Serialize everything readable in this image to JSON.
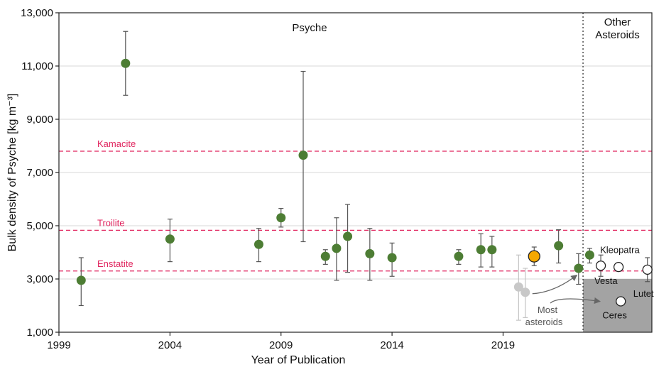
{
  "chart_data": {
    "type": "scatter",
    "title": "",
    "xlabel": "Year of Publication",
    "ylabel": "Bulk density of Psyche [kg m⁻³]",
    "xlim": [
      1999,
      2025.7
    ],
    "ylim": [
      1000,
      13000
    ],
    "x_ticks": [
      "1999",
      "2004",
      "2009",
      "2014",
      "2019"
    ],
    "x_tick_values": [
      1999,
      2004,
      2009,
      2014,
      2019
    ],
    "y_ticks": [
      "1,000",
      "3,000",
      "5,000",
      "7,000",
      "9,000",
      "11,000",
      "13,000"
    ],
    "y_tick_values": [
      1000,
      3000,
      5000,
      7000,
      9000,
      11000,
      13000
    ],
    "grid": "horizontal",
    "panels": {
      "psyche": "Psyche",
      "other_line1": "Other",
      "other_line2": "Asteroids",
      "divider_x": 2022.6
    },
    "reference_lines": [
      {
        "label": "Kamacite",
        "y": 7800,
        "color": "#e0245e"
      },
      {
        "label": "Troilite",
        "y": 4830,
        "color": "#e0245e"
      },
      {
        "label": "Enstatite",
        "y": 3300,
        "color": "#e0245e"
      }
    ],
    "psyche_points": [
      {
        "x": 2000.0,
        "y": 2950,
        "lo": 2000,
        "hi": 3800
      },
      {
        "x": 2002.0,
        "y": 11100,
        "lo": 9900,
        "hi": 12300
      },
      {
        "x": 2004.0,
        "y": 4500,
        "lo": 3650,
        "hi": 5250
      },
      {
        "x": 2008.0,
        "y": 4300,
        "lo": 3650,
        "hi": 4900
      },
      {
        "x": 2009.0,
        "y": 5300,
        "lo": 4950,
        "hi": 5650
      },
      {
        "x": 2010.0,
        "y": 7650,
        "lo": 4400,
        "hi": 10800
      },
      {
        "x": 2011.0,
        "y": 3850,
        "lo": 3550,
        "hi": 4100
      },
      {
        "x": 2011.5,
        "y": 4150,
        "lo": 2950,
        "hi": 5300
      },
      {
        "x": 2012.0,
        "y": 4600,
        "lo": 3250,
        "hi": 5800
      },
      {
        "x": 2013.0,
        "y": 3950,
        "lo": 2950,
        "hi": 4900
      },
      {
        "x": 2014.0,
        "y": 3800,
        "lo": 3100,
        "hi": 4350
      },
      {
        "x": 2017.0,
        "y": 3850,
        "lo": 3550,
        "hi": 4100
      },
      {
        "x": 2018.0,
        "y": 4100,
        "lo": 3450,
        "hi": 4700
      },
      {
        "x": 2018.5,
        "y": 4100,
        "lo": 3450,
        "hi": 4600
      },
      {
        "x": 2021.5,
        "y": 4250,
        "lo": 3600,
        "hi": 4850
      },
      {
        "x": 2022.4,
        "y": 3400,
        "lo": 2800,
        "hi": 3950
      },
      {
        "x": 2022.9,
        "y": 3900,
        "lo": 3600,
        "hi": 4150
      }
    ],
    "psyche_highlight": {
      "x": 2020.4,
      "y": 3850,
      "lo": 3500,
      "hi": 4200,
      "color": "#f5a800"
    },
    "faded_points": [
      {
        "x": 2019.7,
        "y": 2700,
        "lo": 1450,
        "hi": 3900
      },
      {
        "x": 2020.0,
        "y": 2500,
        "lo": 1550,
        "hi": 3400
      }
    ],
    "other_asteroids": [
      {
        "name": "Kleopatra",
        "x": 2023.4,
        "y": 3500,
        "lo": 3100,
        "hi": 3900
      },
      {
        "name": "Vesta",
        "x": 2024.2,
        "y": 3450,
        "lo": 3450,
        "hi": 3450
      },
      {
        "name": "Ceres",
        "x": 2024.3,
        "y": 2160,
        "lo": 2160,
        "hi": 2160
      },
      {
        "name": "Lutetia",
        "x": 2025.5,
        "y": 3350,
        "lo": 2900,
        "hi": 3800
      }
    ],
    "most_asteroids": {
      "label_line1": "Most",
      "label_line2": "asteroids",
      "y_range": [
        1000,
        3000
      ],
      "color": "#a3a3a3"
    },
    "colors": {
      "point": "#4d7d34",
      "highlight": "#f5a800",
      "faded": "#c8c8c8",
      "errorbar": "#555555",
      "grid": "#d7d7d7",
      "ref_line": "#e0245e",
      "shade": "#a3a3a3"
    }
  }
}
